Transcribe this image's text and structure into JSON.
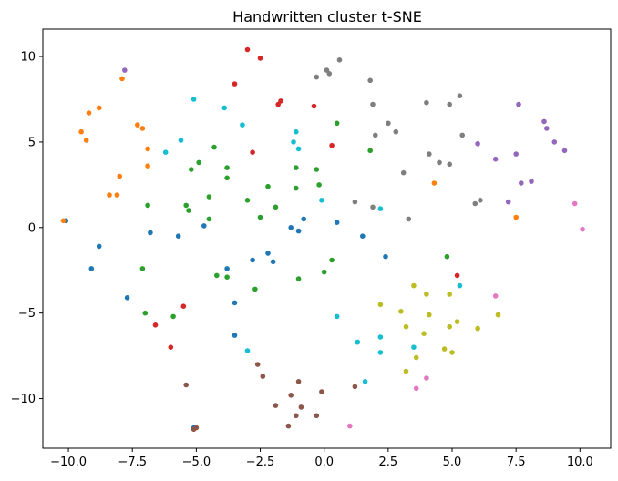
{
  "chart_data": {
    "type": "scatter",
    "title": "Handwritten cluster t-SNE",
    "xlabel": "",
    "ylabel": "",
    "xlim": [
      -11.0,
      11.2
    ],
    "ylim": [
      -12.9,
      11.6
    ],
    "xticks": [
      -10.0,
      -7.5,
      -5.0,
      -2.5,
      0.0,
      2.5,
      5.0,
      7.5,
      10.0
    ],
    "xtick_labels": [
      "−10.0",
      "−7.5",
      "−5.0",
      "−2.5",
      "0.0",
      "2.5",
      "5.0",
      "7.5",
      "10.0"
    ],
    "yticks": [
      -10,
      -5,
      0,
      5,
      10
    ],
    "ytick_labels": [
      "−10",
      "−5",
      "0",
      "5",
      "10"
    ],
    "grid": false,
    "legend": "none",
    "series": [
      {
        "color": "#1f77b4",
        "points": [
          [
            -10.1,
            0.4
          ],
          [
            -8.8,
            -1.1
          ],
          [
            -9.1,
            -2.4
          ],
          [
            -7.7,
            -4.1
          ],
          [
            -6.8,
            -0.3
          ],
          [
            -5.7,
            -0.5
          ],
          [
            -4.7,
            0.1
          ],
          [
            -3.8,
            -2.4
          ],
          [
            -3.5,
            -4.4
          ],
          [
            -3.5,
            -6.3
          ],
          [
            -2.8,
            -1.9
          ],
          [
            -2.2,
            -1.5
          ],
          [
            -2.0,
            -2.0
          ],
          [
            -1.3,
            0.0
          ],
          [
            -1.0,
            -0.2
          ],
          [
            -0.8,
            0.5
          ],
          [
            0.5,
            0.3
          ],
          [
            1.5,
            -0.5
          ],
          [
            2.4,
            -1.7
          ],
          [
            -5.1,
            -11.7
          ]
        ]
      },
      {
        "color": "#ff7f0e",
        "points": [
          [
            -10.2,
            0.4
          ],
          [
            -7.9,
            8.7
          ],
          [
            -9.2,
            6.7
          ],
          [
            -8.8,
            7.0
          ],
          [
            -9.5,
            5.6
          ],
          [
            -9.3,
            5.1
          ],
          [
            -7.3,
            6.0
          ],
          [
            -7.1,
            5.8
          ],
          [
            -6.9,
            4.6
          ],
          [
            -6.9,
            3.6
          ],
          [
            -8.0,
            3.0
          ],
          [
            -8.4,
            1.9
          ],
          [
            -8.1,
            1.9
          ],
          [
            4.3,
            2.6
          ],
          [
            7.5,
            0.6
          ]
        ]
      },
      {
        "color": "#2ca02c",
        "points": [
          [
            -4.3,
            4.7
          ],
          [
            -3.8,
            3.5
          ],
          [
            -3.8,
            2.9
          ],
          [
            -5.2,
            3.4
          ],
          [
            -4.9,
            3.8
          ],
          [
            -5.4,
            1.3
          ],
          [
            -5.3,
            1.0
          ],
          [
            -4.5,
            1.8
          ],
          [
            -4.5,
            0.5
          ],
          [
            -3.0,
            1.6
          ],
          [
            -2.2,
            2.4
          ],
          [
            -2.5,
            0.6
          ],
          [
            -1.9,
            1.2
          ],
          [
            -1.1,
            3.5
          ],
          [
            -1.1,
            2.3
          ],
          [
            -0.3,
            3.4
          ],
          [
            -0.2,
            2.5
          ],
          [
            0.5,
            6.1
          ],
          [
            1.8,
            4.5
          ],
          [
            -6.9,
            1.3
          ],
          [
            -7.1,
            -2.4
          ],
          [
            -7.0,
            -5.0
          ],
          [
            -5.9,
            -5.2
          ],
          [
            -4.2,
            -2.8
          ],
          [
            -3.8,
            -2.9
          ],
          [
            -2.7,
            -3.6
          ],
          [
            -1.0,
            -3.0
          ],
          [
            0.0,
            -2.6
          ],
          [
            0.3,
            -1.9
          ],
          [
            4.8,
            -1.7
          ]
        ]
      },
      {
        "color": "#d62728",
        "points": [
          [
            -3.0,
            10.4
          ],
          [
            -2.5,
            9.9
          ],
          [
            -3.5,
            8.4
          ],
          [
            -1.8,
            7.2
          ],
          [
            -1.7,
            7.4
          ],
          [
            -0.4,
            7.1
          ],
          [
            0.3,
            4.8
          ],
          [
            -2.8,
            4.4
          ],
          [
            5.2,
            -2.8
          ],
          [
            -6.6,
            -5.7
          ],
          [
            -5.5,
            -4.6
          ],
          [
            -6.0,
            -7.0
          ]
        ]
      },
      {
        "color": "#9467bd",
        "points": [
          [
            -7.8,
            9.2
          ],
          [
            7.6,
            7.2
          ],
          [
            8.6,
            6.2
          ],
          [
            8.7,
            5.8
          ],
          [
            9.0,
            5.0
          ],
          [
            9.4,
            4.5
          ],
          [
            6.0,
            4.9
          ],
          [
            6.7,
            4.0
          ],
          [
            7.5,
            4.3
          ],
          [
            7.7,
            2.6
          ],
          [
            8.1,
            2.7
          ],
          [
            7.2,
            1.5
          ]
        ]
      },
      {
        "color": "#8c564b",
        "points": [
          [
            -2.6,
            -8.0
          ],
          [
            -2.4,
            -8.7
          ],
          [
            -5.4,
            -9.2
          ],
          [
            -1.9,
            -10.4
          ],
          [
            -1.3,
            -9.8
          ],
          [
            -1.0,
            -9.0
          ],
          [
            -0.9,
            -10.5
          ],
          [
            -1.1,
            -11.0
          ],
          [
            -1.4,
            -11.6
          ],
          [
            -0.3,
            -11.0
          ],
          [
            -0.1,
            -9.6
          ],
          [
            1.2,
            -9.3
          ],
          [
            -5.0,
            -11.7
          ],
          [
            -5.1,
            -11.8
          ]
        ]
      },
      {
        "color": "#e377c2",
        "points": [
          [
            9.8,
            1.4
          ],
          [
            10.1,
            -0.1
          ],
          [
            6.7,
            -4.0
          ],
          [
            4.0,
            -8.8
          ],
          [
            3.6,
            -9.4
          ],
          [
            1.0,
            -11.6
          ]
        ]
      },
      {
        "color": "#7f7f7f",
        "points": [
          [
            0.6,
            9.8
          ],
          [
            0.1,
            9.2
          ],
          [
            0.2,
            9.0
          ],
          [
            -0.3,
            8.8
          ],
          [
            1.8,
            8.6
          ],
          [
            1.9,
            7.2
          ],
          [
            4.0,
            7.3
          ],
          [
            4.9,
            7.2
          ],
          [
            5.3,
            7.7
          ],
          [
            2.8,
            5.6
          ],
          [
            2.5,
            6.1
          ],
          [
            2.0,
            5.4
          ],
          [
            5.4,
            5.4
          ],
          [
            4.1,
            4.3
          ],
          [
            4.5,
            3.8
          ],
          [
            4.9,
            3.7
          ],
          [
            3.1,
            3.2
          ],
          [
            1.2,
            1.5
          ],
          [
            1.9,
            1.2
          ],
          [
            3.3,
            0.5
          ],
          [
            5.9,
            1.4
          ],
          [
            6.1,
            1.6
          ]
        ]
      },
      {
        "color": "#bcbd22",
        "points": [
          [
            2.2,
            -4.5
          ],
          [
            3.5,
            -3.4
          ],
          [
            4.0,
            -3.9
          ],
          [
            4.9,
            -3.9
          ],
          [
            3.0,
            -4.9
          ],
          [
            3.2,
            -5.8
          ],
          [
            4.1,
            -5.1
          ],
          [
            5.2,
            -5.5
          ],
          [
            4.9,
            -5.8
          ],
          [
            6.0,
            -5.9
          ],
          [
            6.8,
            -5.1
          ],
          [
            3.9,
            -6.2
          ],
          [
            3.6,
            -7.6
          ],
          [
            3.2,
            -8.4
          ],
          [
            4.7,
            -7.1
          ],
          [
            5.0,
            -7.3
          ]
        ]
      },
      {
        "color": "#17becf",
        "points": [
          [
            -5.1,
            7.5
          ],
          [
            -3.9,
            7.0
          ],
          [
            -3.2,
            6.0
          ],
          [
            -1.1,
            5.6
          ],
          [
            -1.2,
            5.0
          ],
          [
            -1.0,
            4.6
          ],
          [
            -5.6,
            5.1
          ],
          [
            -6.2,
            4.4
          ],
          [
            -0.1,
            1.6
          ],
          [
            2.2,
            1.1
          ],
          [
            5.3,
            -3.4
          ],
          [
            0.5,
            -5.2
          ],
          [
            2.2,
            -6.4
          ],
          [
            1.3,
            -6.7
          ],
          [
            1.3,
            -6.7
          ],
          [
            2.2,
            -7.3
          ],
          [
            3.5,
            -7.0
          ],
          [
            -3.0,
            -7.2
          ],
          [
            1.6,
            -9.0
          ]
        ]
      }
    ]
  }
}
